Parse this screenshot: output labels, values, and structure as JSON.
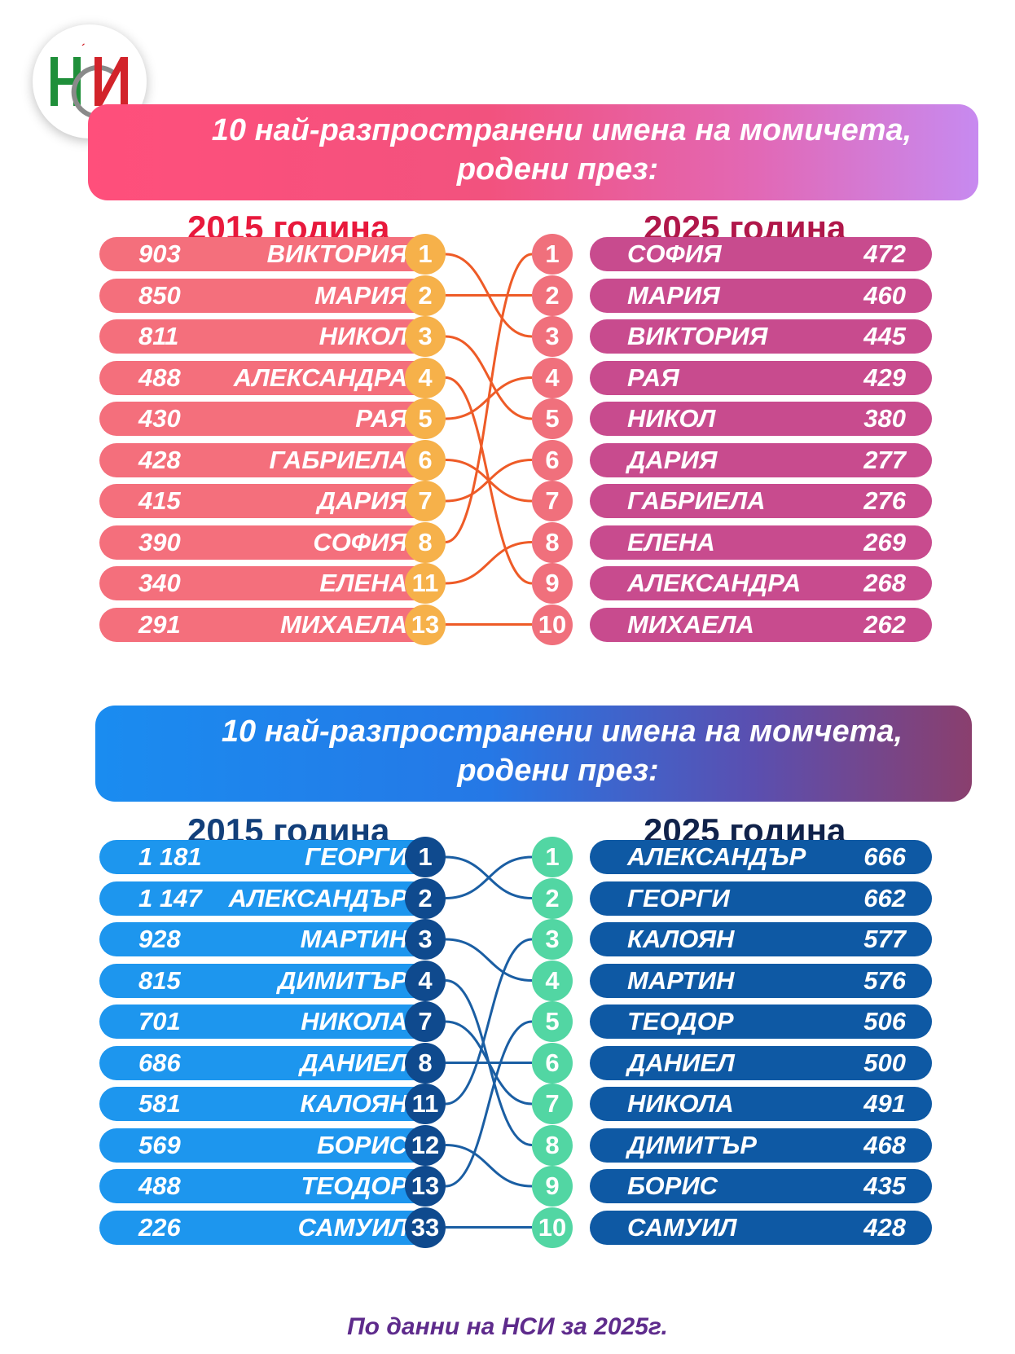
{
  "logo": {
    "text": "НСИ"
  },
  "colors": {
    "girls_left_row": "#f46f7c",
    "girls_left_badge": "#f6b14a",
    "girls_right_row": "#c84b8e",
    "girls_right_badge": "#f0707c",
    "girls_line": "#ee5b27",
    "boys_left_row": "#1d96ee",
    "boys_left_badge": "#0f4a8e",
    "boys_right_row": "#0e59a4",
    "boys_right_badge": "#52d6a3",
    "boys_line": "#1a5ea3"
  },
  "girls": {
    "title_line1": "10 най-разпространени имена на момичета,",
    "title_line2": "родени през:",
    "year_left": "2015 година",
    "year_right": "2025 година",
    "left": [
      {
        "count": "903",
        "name": "ВИКТОРИЯ",
        "rank": "1"
      },
      {
        "count": "850",
        "name": "МАРИЯ",
        "rank": "2"
      },
      {
        "count": "811",
        "name": "НИКОЛ",
        "rank": "3"
      },
      {
        "count": "488",
        "name": "АЛЕКСАНДРА",
        "rank": "4"
      },
      {
        "count": "430",
        "name": "РАЯ",
        "rank": "5"
      },
      {
        "count": "428",
        "name": "ГАБРИЕЛА",
        "rank": "6"
      },
      {
        "count": "415",
        "name": "ДАРИЯ",
        "rank": "7"
      },
      {
        "count": "390",
        "name": "СОФИЯ",
        "rank": "8"
      },
      {
        "count": "340",
        "name": "ЕЛЕНА",
        "rank": "11"
      },
      {
        "count": "291",
        "name": "МИХАЕЛА",
        "rank": "13"
      }
    ],
    "right": [
      {
        "rank": "1",
        "name": "СОФИЯ",
        "count": "472"
      },
      {
        "rank": "2",
        "name": "МАРИЯ",
        "count": "460"
      },
      {
        "rank": "3",
        "name": "ВИКТОРИЯ",
        "count": "445"
      },
      {
        "rank": "4",
        "name": "РАЯ",
        "count": "429"
      },
      {
        "rank": "5",
        "name": "НИКОЛ",
        "count": "380"
      },
      {
        "rank": "6",
        "name": "ДАРИЯ",
        "count": "277"
      },
      {
        "rank": "7",
        "name": "ГАБРИЕЛА",
        "count": "276"
      },
      {
        "rank": "8",
        "name": "ЕЛЕНА",
        "count": "269"
      },
      {
        "rank": "9",
        "name": "АЛЕКСАНДРА",
        "count": "268"
      },
      {
        "rank": "10",
        "name": "МИХАЕЛА",
        "count": "262"
      }
    ]
  },
  "boys": {
    "title_line1": "10 най-разпространени имена на момчета,",
    "title_line2": "родени през:",
    "year_left": "2015 година",
    "year_right": "2025 година",
    "left": [
      {
        "count": "1 181",
        "name": "ГЕОРГИ",
        "rank": "1"
      },
      {
        "count": "1 147",
        "name": "АЛЕКСАНДЪР",
        "rank": "2"
      },
      {
        "count": "928",
        "name": "МАРТИН",
        "rank": "3"
      },
      {
        "count": "815",
        "name": "ДИМИТЪР",
        "rank": "4"
      },
      {
        "count": "701",
        "name": "НИКОЛА",
        "rank": "7"
      },
      {
        "count": "686",
        "name": "ДАНИЕЛ",
        "rank": "8"
      },
      {
        "count": "581",
        "name": "КАЛОЯН",
        "rank": "11"
      },
      {
        "count": "569",
        "name": "БОРИС",
        "rank": "12"
      },
      {
        "count": "488",
        "name": "ТЕОДОР",
        "rank": "13"
      },
      {
        "count": "226",
        "name": "САМУИЛ",
        "rank": "33"
      }
    ],
    "right": [
      {
        "rank": "1",
        "name": "АЛЕКСАНДЪР",
        "count": "666"
      },
      {
        "rank": "2",
        "name": "ГЕОРГИ",
        "count": "662"
      },
      {
        "rank": "3",
        "name": "КАЛОЯН",
        "count": "577"
      },
      {
        "rank": "4",
        "name": "МАРТИН",
        "count": "576"
      },
      {
        "rank": "5",
        "name": "ТЕОДОР",
        "count": "506"
      },
      {
        "rank": "6",
        "name": "ДАНИЕЛ",
        "count": "500"
      },
      {
        "rank": "7",
        "name": "НИКОЛА",
        "count": "491"
      },
      {
        "rank": "8",
        "name": "ДИМИТЪР",
        "count": "468"
      },
      {
        "rank": "9",
        "name": "БОРИС",
        "count": "435"
      },
      {
        "rank": "10",
        "name": "САМУИЛ",
        "count": "428"
      }
    ]
  },
  "footer": "По данни на НСИ за 2025г."
}
